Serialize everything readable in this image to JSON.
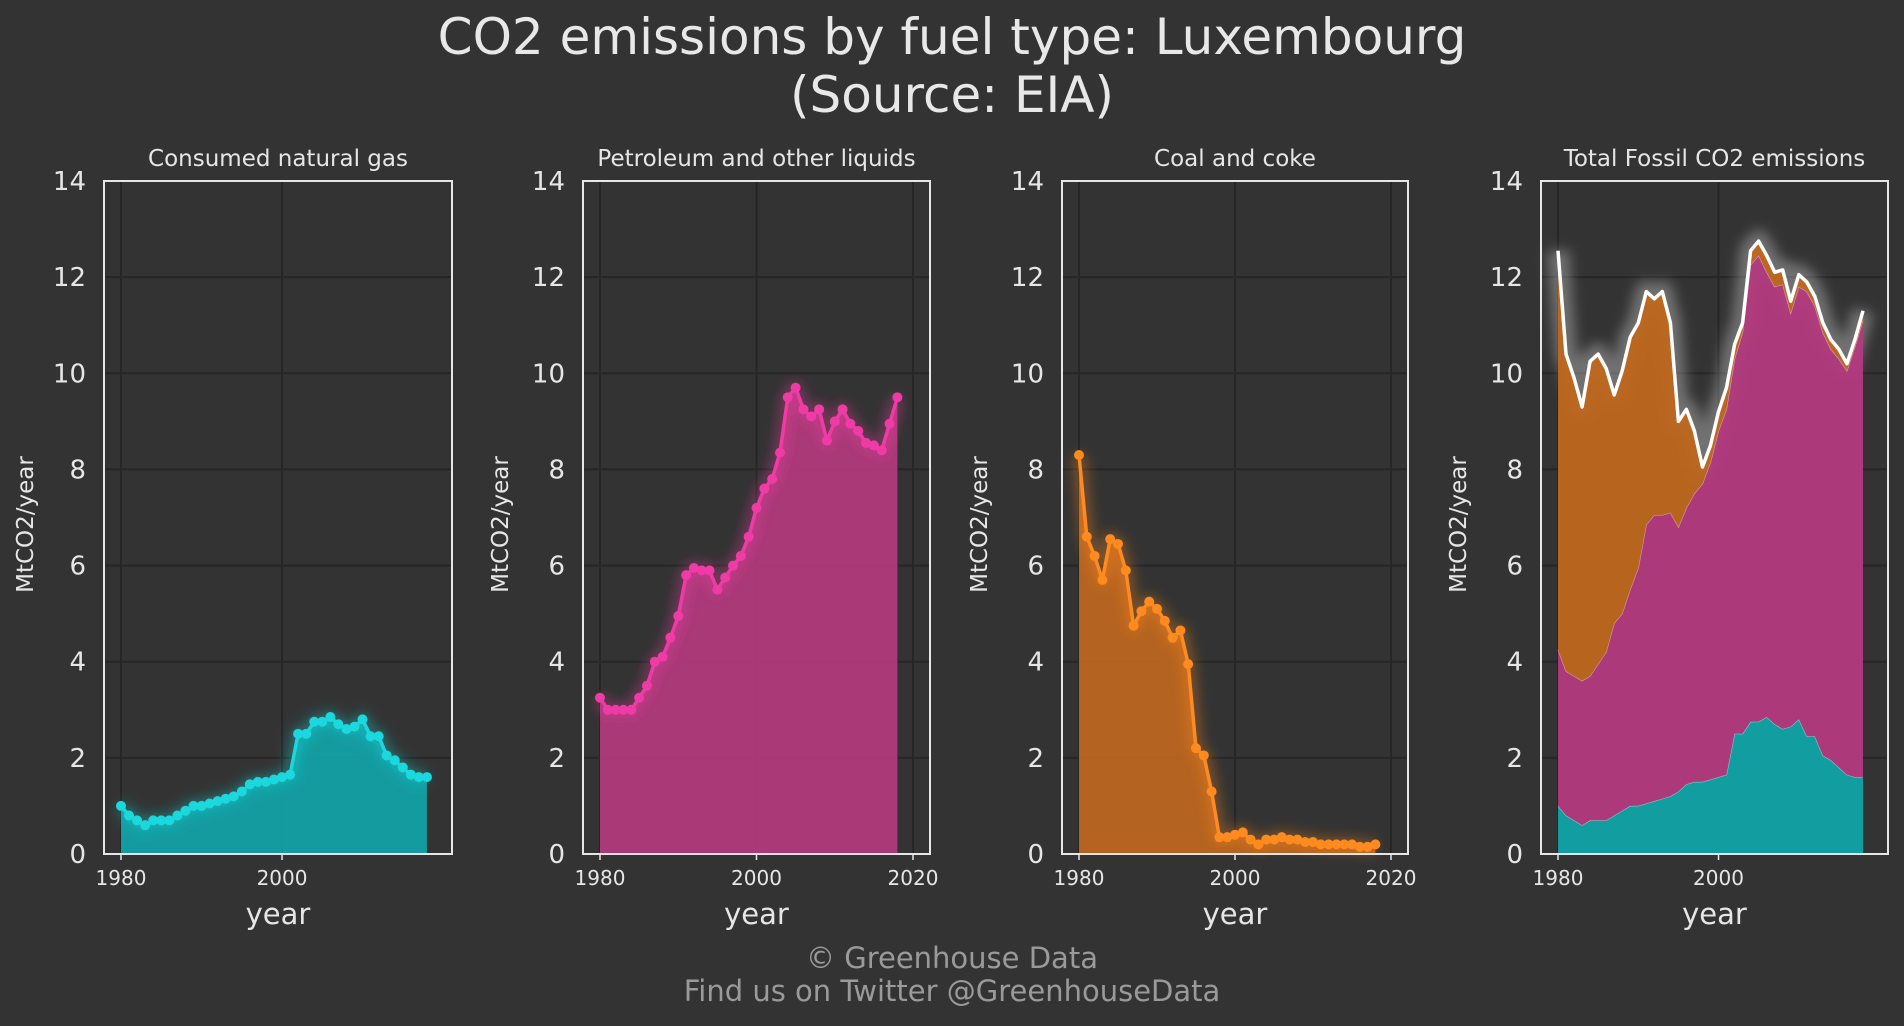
{
  "title_line1": "CO2 emissions by fuel type: Luxembourg",
  "title_line2": "(Source: EIA)",
  "footer_line1": "© Greenhouse Data",
  "footer_line2": "Find us on Twitter @GreenhouseData",
  "colors": {
    "background": "#333333",
    "gas": "#19d8de",
    "gas_fill": "#11a4a8",
    "petroleum": "#f03aa5",
    "petroleum_fill": "#b33a7d",
    "coal": "#ff8a1e",
    "coal_fill": "#bf671f",
    "total_line": "#ffffff"
  },
  "chart_data": [
    {
      "type": "area",
      "title": "Consumed natural gas",
      "xlabel": "year",
      "ylabel": "MtCO2/year",
      "ylim": [
        0,
        14
      ],
      "xlim": [
        1980,
        2019
      ],
      "xticks": [
        "1980",
        "2000"
      ],
      "yticks": [
        "0",
        "2",
        "4",
        "6",
        "8",
        "10",
        "12",
        "14"
      ],
      "grid": true,
      "color_key": "gas",
      "x": [
        1980,
        1981,
        1982,
        1983,
        1984,
        1985,
        1986,
        1987,
        1988,
        1989,
        1990,
        1991,
        1992,
        1993,
        1994,
        1995,
        1996,
        1997,
        1998,
        1999,
        2000,
        2001,
        2002,
        2003,
        2004,
        2005,
        2006,
        2007,
        2008,
        2009,
        2010,
        2011,
        2012,
        2013,
        2014,
        2015,
        2016,
        2017,
        2018
      ],
      "y": [
        1.0,
        0.8,
        0.7,
        0.6,
        0.7,
        0.7,
        0.7,
        0.8,
        0.9,
        1.0,
        1.0,
        1.05,
        1.1,
        1.15,
        1.2,
        1.3,
        1.45,
        1.5,
        1.5,
        1.55,
        1.6,
        1.65,
        2.5,
        2.5,
        2.75,
        2.75,
        2.85,
        2.7,
        2.6,
        2.65,
        2.8,
        2.45,
        2.45,
        2.05,
        1.95,
        1.8,
        1.65,
        1.6,
        1.6
      ]
    },
    {
      "type": "area",
      "title": "Petroleum and other liquids",
      "xlabel": "year",
      "ylabel": "MtCO2/year",
      "ylim": [
        0,
        14
      ],
      "xlim": [
        1980,
        2020
      ],
      "xticks": [
        "1980",
        "2000",
        "2020"
      ],
      "yticks": [
        "0",
        "2",
        "4",
        "6",
        "8",
        "10",
        "12",
        "14"
      ],
      "grid": true,
      "color_key": "petroleum",
      "x": [
        1980,
        1981,
        1982,
        1983,
        1984,
        1985,
        1986,
        1987,
        1988,
        1989,
        1990,
        1991,
        1992,
        1993,
        1994,
        1995,
        1996,
        1997,
        1998,
        1999,
        2000,
        2001,
        2002,
        2003,
        2004,
        2005,
        2006,
        2007,
        2008,
        2009,
        2010,
        2011,
        2012,
        2013,
        2014,
        2015,
        2016,
        2017,
        2018
      ],
      "y": [
        3.25,
        3.0,
        3.0,
        3.0,
        3.0,
        3.25,
        3.5,
        4.0,
        4.1,
        4.5,
        4.95,
        5.8,
        5.95,
        5.9,
        5.9,
        5.5,
        5.75,
        6.0,
        6.2,
        6.6,
        7.2,
        7.6,
        7.8,
        8.35,
        9.5,
        9.7,
        9.25,
        9.1,
        9.25,
        8.6,
        9.0,
        9.25,
        8.95,
        8.8,
        8.55,
        8.5,
        8.4,
        8.95,
        9.5
      ]
    },
    {
      "type": "line",
      "title": "Coal and coke",
      "xlabel": "year",
      "ylabel": "MtCO2/year",
      "ylim": [
        0,
        14
      ],
      "xlim": [
        1980,
        2020
      ],
      "xticks": [
        "1980",
        "2000",
        "2020"
      ],
      "yticks": [
        "0",
        "2",
        "4",
        "6",
        "8",
        "10",
        "12",
        "14"
      ],
      "grid": true,
      "color_key": "coal",
      "x": [
        1980,
        1981,
        1982,
        1983,
        1984,
        1985,
        1986,
        1987,
        1988,
        1989,
        1990,
        1991,
        1992,
        1993,
        1994,
        1995,
        1996,
        1997,
        1998,
        1999,
        2000,
        2001,
        2002,
        2003,
        2004,
        2005,
        2006,
        2007,
        2008,
        2009,
        2010,
        2011,
        2012,
        2013,
        2014,
        2015,
        2016,
        2017,
        2018
      ],
      "y": [
        8.3,
        6.6,
        6.2,
        5.7,
        6.55,
        6.45,
        5.9,
        4.75,
        5.05,
        5.25,
        5.1,
        4.85,
        4.5,
        4.65,
        3.95,
        2.2,
        2.05,
        1.3,
        0.35,
        0.35,
        0.4,
        0.45,
        0.3,
        0.2,
        0.3,
        0.3,
        0.35,
        0.3,
        0.3,
        0.25,
        0.25,
        0.2,
        0.2,
        0.2,
        0.2,
        0.2,
        0.15,
        0.15,
        0.2
      ]
    },
    {
      "type": "area",
      "title": "Total Fossil CO2 emissions",
      "xlabel": "year",
      "ylabel": "MtCO2/year",
      "ylim": [
        0,
        14
      ],
      "xlim": [
        1980,
        2019
      ],
      "xticks": [
        "1980",
        "2000"
      ],
      "yticks": [
        "0",
        "2",
        "4",
        "6",
        "8",
        "10",
        "12",
        "14"
      ],
      "grid": true,
      "stacked": true,
      "series_refs": [
        "Consumed natural gas",
        "Petroleum and other liquids",
        "Coal and coke"
      ],
      "total_line": true
    }
  ]
}
